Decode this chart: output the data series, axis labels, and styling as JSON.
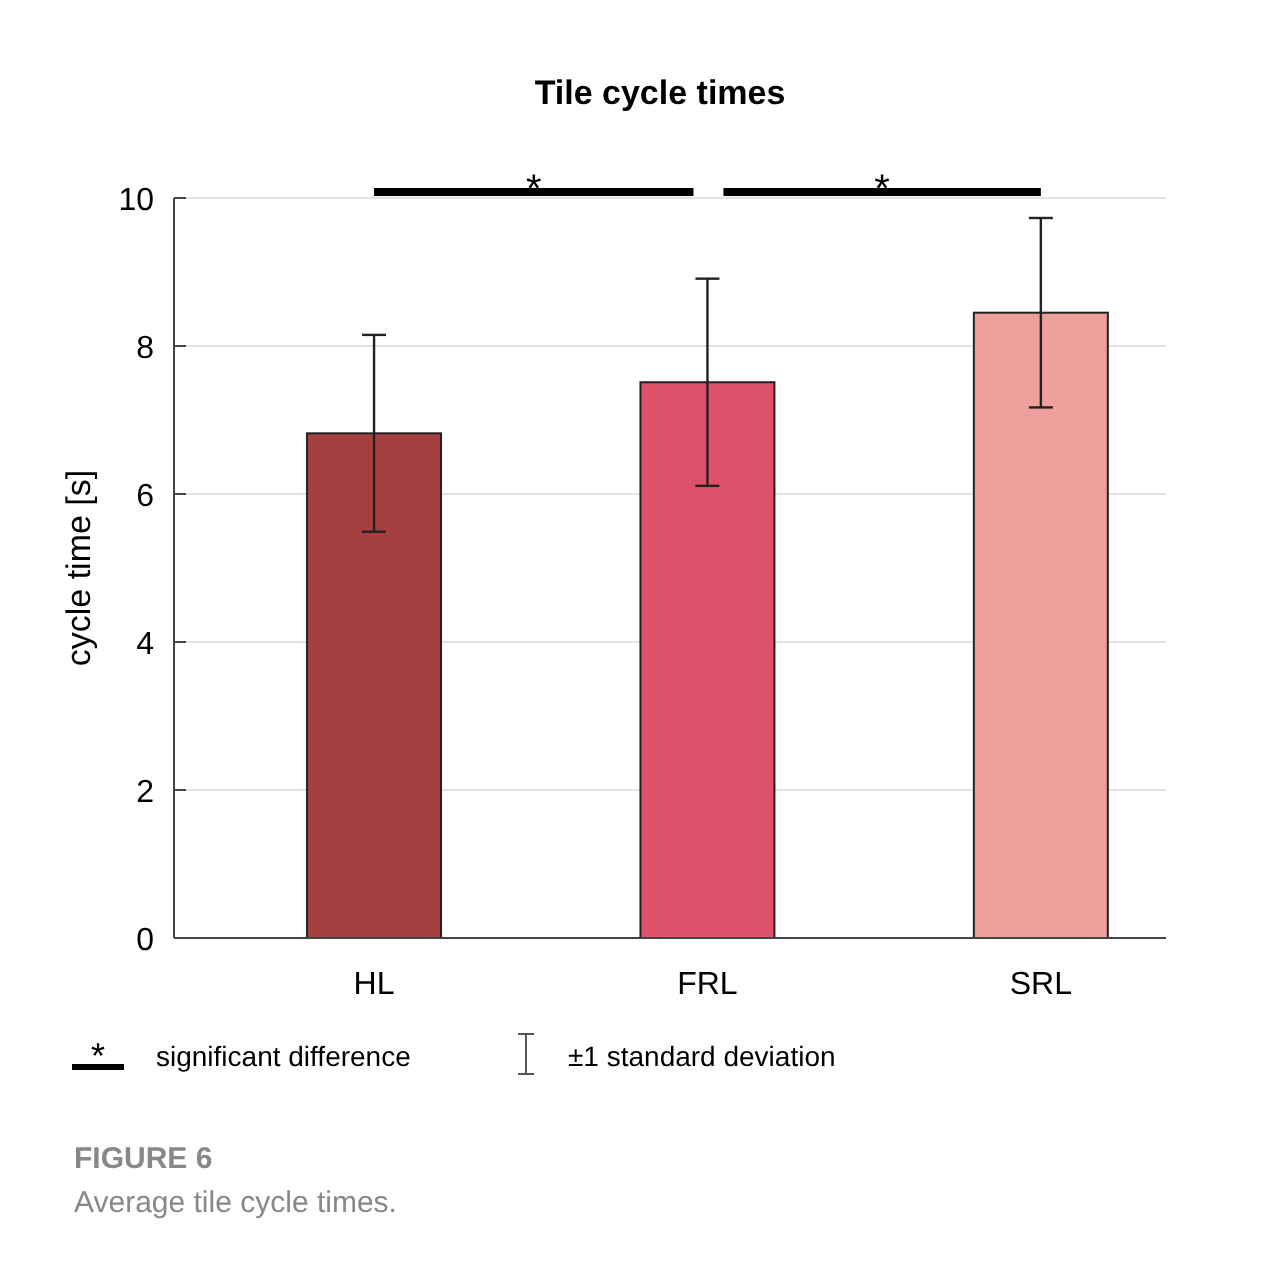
{
  "chart_data": {
    "type": "bar",
    "title": "Tile cycle times",
    "ylabel": "cycle time [s]",
    "categories": [
      "HL",
      "FRL",
      "SRL"
    ],
    "values": [
      6.82,
      7.51,
      8.45
    ],
    "errors": [
      1.33,
      1.4,
      1.28
    ],
    "colors": [
      "#a63f40",
      "#df506a",
      "#f0a09c"
    ],
    "ylim": [
      0,
      10
    ],
    "yticks": [
      0,
      2,
      4,
      6,
      8,
      10
    ],
    "grid": "y",
    "annotations": [
      "*",
      "*",
      "significant difference",
      "±1 standard deviation",
      "FIGURE 6",
      "Average tile cycle times."
    ]
  }
}
